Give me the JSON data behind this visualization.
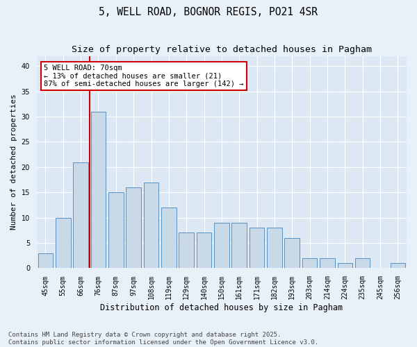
{
  "title_line1": "5, WELL ROAD, BOGNOR REGIS, PO21 4SR",
  "title_line2": "Size of property relative to detached houses in Pagham",
  "xlabel": "Distribution of detached houses by size in Pagham",
  "ylabel": "Number of detached properties",
  "categories": [
    "45sqm",
    "55sqm",
    "66sqm",
    "76sqm",
    "87sqm",
    "97sqm",
    "108sqm",
    "119sqm",
    "129sqm",
    "140sqm",
    "150sqm",
    "161sqm",
    "171sqm",
    "182sqm",
    "193sqm",
    "203sqm",
    "214sqm",
    "224sqm",
    "235sqm",
    "245sqm",
    "256sqm"
  ],
  "values": [
    3,
    10,
    21,
    31,
    15,
    16,
    17,
    12,
    7,
    7,
    9,
    9,
    8,
    8,
    6,
    2,
    2,
    1,
    2,
    0,
    1
  ],
  "bar_color": "#c9d9e8",
  "bar_edgecolor": "#5a8fc0",
  "vline_x": 2.5,
  "annotation_text": "5 WELL ROAD: 70sqm\n← 13% of detached houses are smaller (21)\n87% of semi-detached houses are larger (142) →",
  "annotation_box_color": "#ffffff",
  "annotation_box_edgecolor": "#cc0000",
  "vline_color": "#cc0000",
  "ylim": [
    0,
    42
  ],
  "yticks": [
    0,
    5,
    10,
    15,
    20,
    25,
    30,
    35,
    40
  ],
  "fig_background_color": "#e8f0f8",
  "plot_background": "#dce9f5",
  "grid_color": "#ffffff",
  "footer_text": "Contains HM Land Registry data © Crown copyright and database right 2025.\nContains public sector information licensed under the Open Government Licence v3.0.",
  "title_fontsize": 10.5,
  "subtitle_fontsize": 9.5,
  "xlabel_fontsize": 8.5,
  "ylabel_fontsize": 8,
  "tick_fontsize": 7,
  "footer_fontsize": 6.5,
  "ann_fontsize": 7.5
}
